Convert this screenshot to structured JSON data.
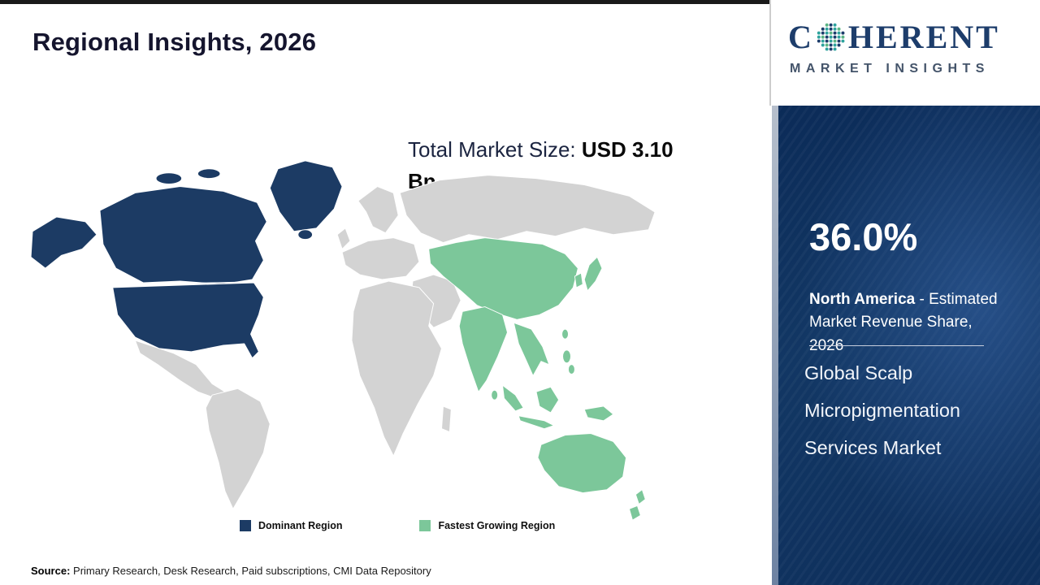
{
  "header": {
    "title": "Regional Insights, 2026"
  },
  "logo": {
    "text_before_globe": "C",
    "text_after_globe": "HERENT",
    "subtitle": "MARKET INSIGHTS"
  },
  "market_size": {
    "label": "Total Market Size: ",
    "value": "USD 3.10\nBn"
  },
  "map": {
    "dominant_region": "North America",
    "fastest_growing_region": "Asia Pacific"
  },
  "legend": [
    {
      "label": "Dominant Region",
      "color": "#1c3b64"
    },
    {
      "label": "Fastest Growing Region",
      "color": "#7cc79a"
    }
  ],
  "sidebar": {
    "share_value": "36.0%",
    "share_region": "North America",
    "share_desc": " - Estimated\nMarket Revenue Share,\n2026",
    "market_name": "Global Scalp\nMicropigmentation\nServices Market"
  },
  "footer": {
    "source_label": "Source:",
    "source_text": " Primary Research, Desk Research, Paid subscriptions, CMI Data Repository"
  },
  "colors": {
    "dominant": "#1c3b64",
    "fastest": "#7cc79a",
    "map_base": "#d3d3d3",
    "panel_start": "#0b2b58",
    "panel_end": "#0e2f5c"
  },
  "chart_data": {
    "type": "choropleth",
    "title": "Regional Insights, 2026",
    "year": 2026,
    "total_market_size": "USD 3.10 Bn",
    "market": "Global Scalp Micropigmentation Services Market",
    "regions": [
      {
        "name": "North America",
        "role": "Dominant Region",
        "estimated_market_revenue_share_2026_pct": 36.0
      },
      {
        "name": "Asia Pacific",
        "role": "Fastest Growing Region",
        "estimated_market_revenue_share_2026_pct": null
      }
    ],
    "legend": [
      "Dominant Region",
      "Fastest Growing Region"
    ],
    "source": "Primary Research, Desk Research, Paid subscriptions, CMI Data Repository"
  }
}
